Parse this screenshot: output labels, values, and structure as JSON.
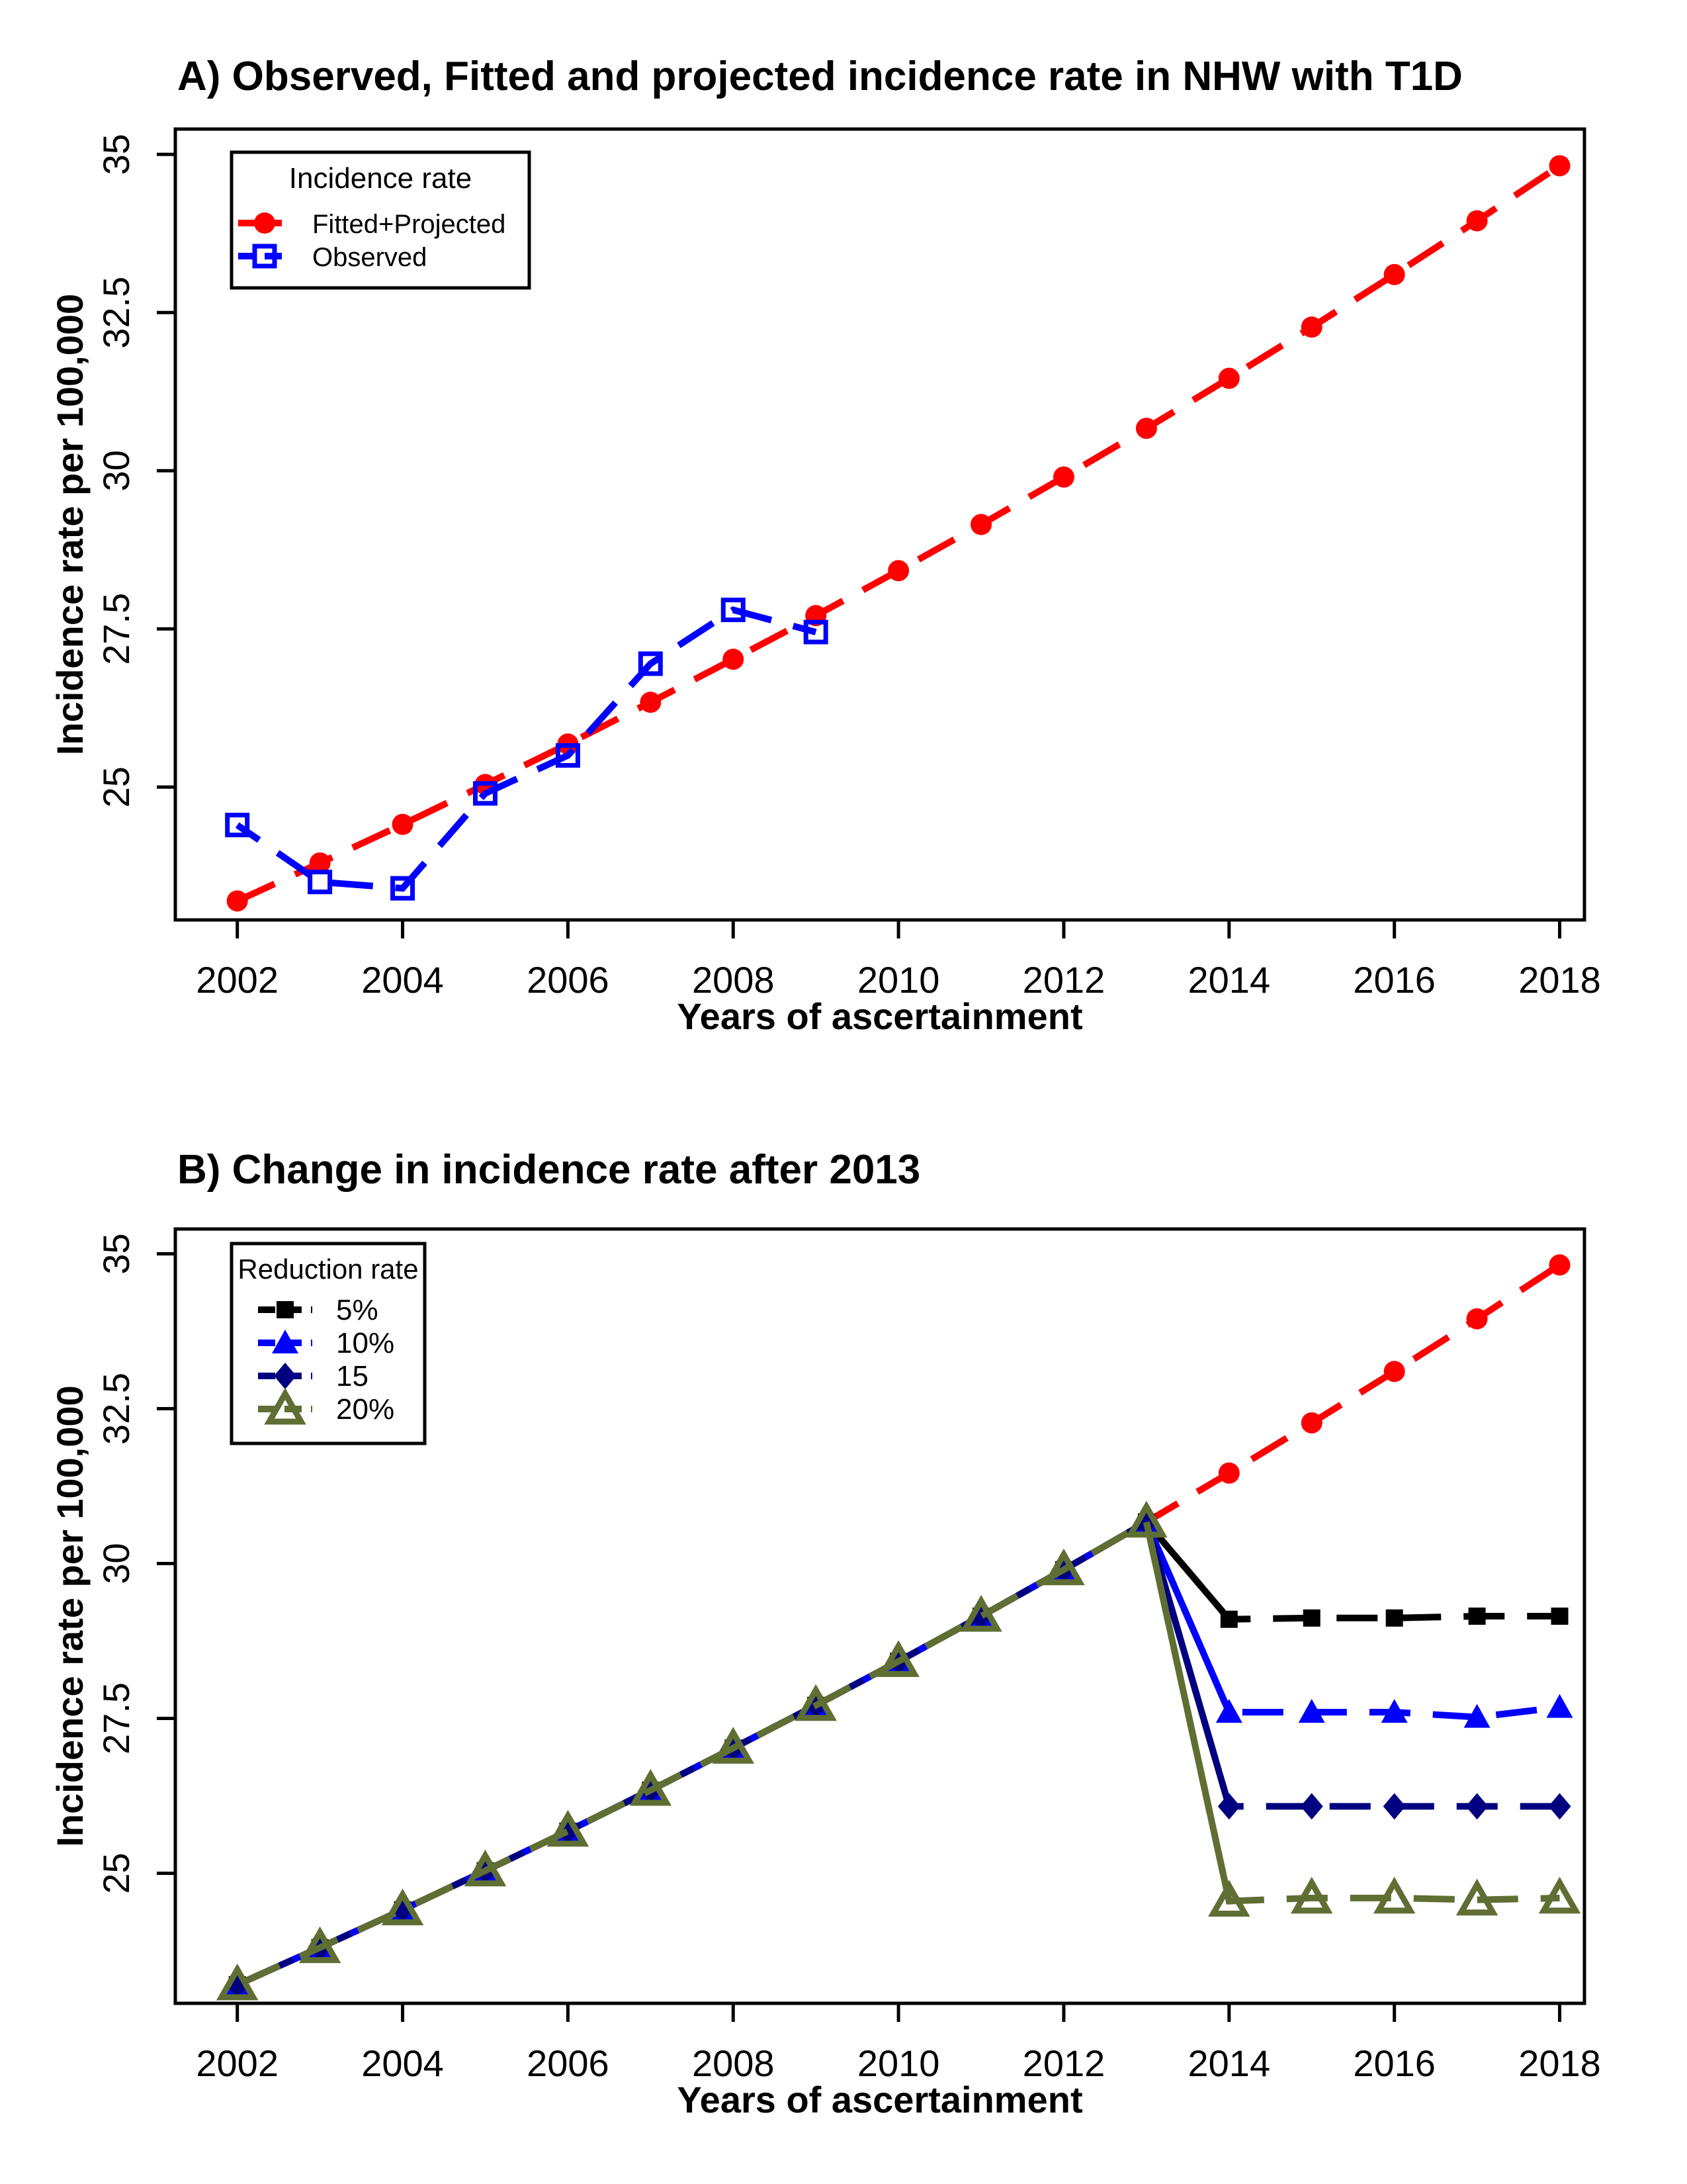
{
  "figure": {
    "background": "#FFFFFF",
    "panel_a_label": "A",
    "panel_b_label": "B"
  },
  "chart_data": [
    {
      "panel": "A",
      "type": "line",
      "title": "A) Observed, Fitted and projected incidence rate in NHW with T1D",
      "xlabel": "Years of ascertainment",
      "ylabel": "Incidence rate per 100,000",
      "xlim": [
        2001.25,
        2018.3
      ],
      "ylim": [
        22.9,
        35.4
      ],
      "xticks": [
        2002,
        2004,
        2006,
        2008,
        2010,
        2012,
        2014,
        2016,
        2018
      ],
      "yticks": [
        25,
        27.5,
        30,
        32.5,
        35
      ],
      "grid": false,
      "legend": {
        "title": "Incidence rate",
        "position": "top-left",
        "entries": [
          {
            "label": "Fitted+Projected",
            "color": "#FF0000",
            "marker": "filled-circle"
          },
          {
            "label": "Observed",
            "color": "#0000FF",
            "marker": "open-square"
          }
        ]
      },
      "series": [
        {
          "name": "Fitted+Projected",
          "color": "#FF0000",
          "marker": "filled-circle",
          "linestyle": "longdash",
          "x": [
            2002,
            2003,
            2004,
            2005,
            2006,
            2007,
            2008,
            2009,
            2010,
            2011,
            2012,
            2013,
            2014,
            2015,
            2016,
            2017,
            2018
          ],
          "values": [
            23.2,
            23.8,
            24.41,
            25.04,
            25.68,
            26.34,
            27.02,
            27.71,
            28.42,
            29.15,
            29.9,
            30.67,
            31.46,
            32.27,
            33.1,
            33.95,
            34.82
          ]
        },
        {
          "name": "Observed",
          "color": "#0000FF",
          "marker": "open-square",
          "linestyle": "longdash",
          "x": [
            2002,
            2003,
            2004,
            2005,
            2006,
            2007,
            2008,
            2009
          ],
          "values": [
            24.4,
            23.5,
            23.4,
            24.9,
            25.5,
            26.95,
            27.8,
            27.45
          ]
        }
      ]
    },
    {
      "panel": "B",
      "type": "line",
      "title": "B) Change in incidence rate after 2013",
      "xlabel": "Years of ascertainment",
      "ylabel": "Incidence rate per 100,000",
      "xlim": [
        2001.25,
        2018.3
      ],
      "ylim": [
        22.9,
        35.4
      ],
      "xticks": [
        2002,
        2004,
        2006,
        2008,
        2010,
        2012,
        2014,
        2016,
        2018
      ],
      "yticks": [
        25,
        27.5,
        30,
        32.5,
        35
      ],
      "grid": false,
      "legend": {
        "title": "Reduction rate",
        "position": "top-left",
        "entries": [
          {
            "label": "5%",
            "color": "#000000",
            "marker": "filled-square"
          },
          {
            "label": "10%",
            "color": "#0000FF",
            "marker": "filled-triangle"
          },
          {
            "label": "15",
            "color": "#000080",
            "marker": "filled-diamond"
          },
          {
            "label": "20%",
            "color": "#5F6E33",
            "marker": "open-triangle"
          }
        ]
      },
      "series": [
        {
          "name": "Fitted+Projected",
          "color": "#FF0000",
          "marker": "filled-circle",
          "linestyle": "longdash",
          "x": [
            2002,
            2003,
            2004,
            2005,
            2006,
            2007,
            2008,
            2009,
            2010,
            2011,
            2012,
            2013,
            2014,
            2015,
            2016,
            2017,
            2018
          ],
          "values": [
            23.2,
            23.8,
            24.41,
            25.04,
            25.68,
            26.34,
            27.02,
            27.71,
            28.42,
            29.15,
            29.9,
            30.67,
            31.46,
            32.27,
            33.1,
            33.95,
            34.82
          ]
        },
        {
          "name": "5%",
          "color": "#000000",
          "marker": "filled-square",
          "linestyle": "longdash",
          "solid_segment_from": 2013,
          "x": [
            2002,
            2003,
            2004,
            2005,
            2006,
            2007,
            2008,
            2009,
            2010,
            2011,
            2012,
            2013,
            2014,
            2015,
            2016,
            2017,
            2018
          ],
          "values": [
            23.2,
            23.8,
            24.41,
            25.04,
            25.68,
            26.34,
            27.02,
            27.71,
            28.42,
            29.15,
            29.9,
            30.67,
            29.1,
            29.12,
            29.12,
            29.15,
            29.15
          ]
        },
        {
          "name": "10%",
          "color": "#0000FF",
          "marker": "filled-triangle",
          "linestyle": "longdash",
          "solid_segment_from": 2013,
          "x": [
            2002,
            2003,
            2004,
            2005,
            2006,
            2007,
            2008,
            2009,
            2010,
            2011,
            2012,
            2013,
            2014,
            2015,
            2016,
            2017,
            2018
          ],
          "values": [
            23.2,
            23.8,
            24.41,
            25.04,
            25.68,
            26.34,
            27.02,
            27.71,
            28.42,
            29.15,
            29.9,
            30.67,
            27.6,
            27.6,
            27.6,
            27.52,
            27.68
          ]
        },
        {
          "name": "15",
          "color": "#000080",
          "marker": "filled-diamond",
          "linestyle": "longdash",
          "solid_segment_from": 2013,
          "x": [
            2002,
            2003,
            2004,
            2005,
            2006,
            2007,
            2008,
            2009,
            2010,
            2011,
            2012,
            2013,
            2014,
            2015,
            2016,
            2017,
            2018
          ],
          "values": [
            23.2,
            23.8,
            24.41,
            25.04,
            25.68,
            26.34,
            27.02,
            27.71,
            28.42,
            29.15,
            29.9,
            30.67,
            26.08,
            26.08,
            26.08,
            26.08,
            26.08
          ]
        },
        {
          "name": "20%",
          "color": "#5F6E33",
          "marker": "open-triangle",
          "linestyle": "longdash",
          "solid_segment_from": 2013,
          "x": [
            2002,
            2003,
            2004,
            2005,
            2006,
            2007,
            2008,
            2009,
            2010,
            2011,
            2012,
            2013,
            2014,
            2015,
            2016,
            2017,
            2018
          ],
          "values": [
            23.2,
            23.8,
            24.41,
            25.04,
            25.68,
            26.34,
            27.02,
            27.71,
            28.42,
            29.15,
            29.9,
            30.67,
            24.55,
            24.6,
            24.6,
            24.57,
            24.6
          ]
        }
      ]
    }
  ]
}
